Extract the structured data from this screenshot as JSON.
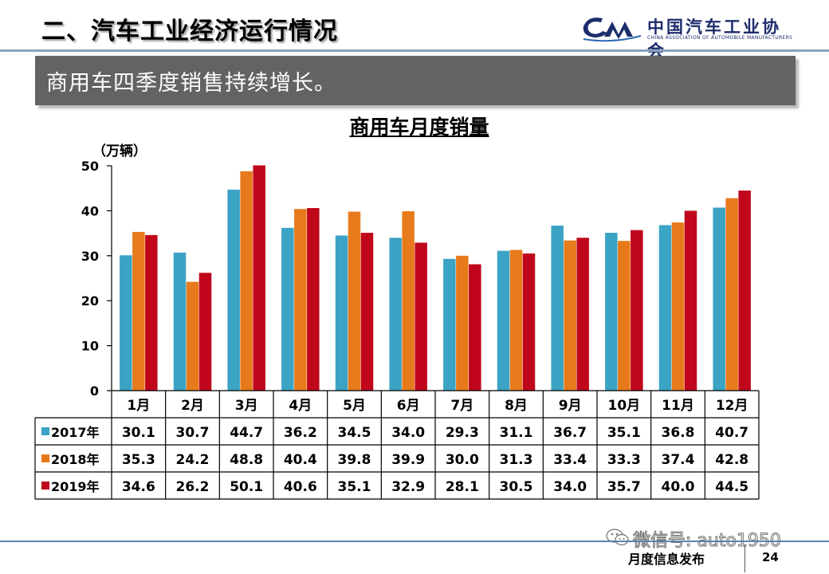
{
  "header": {
    "title": "二、汽车工业经济运行情况",
    "logo_cn": "中国汽车工业协会",
    "logo_en": "CHINA ASSOCIATION OF AUTOMOBILE MANUFACTURERS"
  },
  "banner": {
    "text": "商用车四季度销售持续增长。"
  },
  "colors": {
    "header_line": "#8aa2be",
    "banner_bg": "#636363",
    "logo": "#1d2c6b",
    "footer_line": "#5b82b1"
  },
  "chart_data": {
    "type": "bar",
    "title": "商用车月度销量",
    "unit_label": "（万辆）",
    "categories": [
      "1月",
      "2月",
      "3月",
      "4月",
      "5月",
      "6月",
      "7月",
      "8月",
      "9月",
      "10月",
      "11月",
      "12月"
    ],
    "series": [
      {
        "name": "2017年",
        "color": "#3ba3c4",
        "values": [
          "30.1",
          "30.7",
          "44.7",
          "36.2",
          "34.5",
          "34.0",
          "29.3",
          "31.1",
          "36.7",
          "35.1",
          "36.8",
          "40.7"
        ]
      },
      {
        "name": "2018年",
        "color": "#e77a1b",
        "values": [
          "35.3",
          "24.2",
          "48.8",
          "40.4",
          "39.8",
          "39.9",
          "30.0",
          "31.3",
          "33.4",
          "33.3",
          "37.4",
          "42.8"
        ]
      },
      {
        "name": "2019年",
        "color": "#c0061b",
        "values": [
          "34.6",
          "26.2",
          "50.1",
          "40.6",
          "35.1",
          "32.9",
          "28.1",
          "30.5",
          "34.0",
          "35.7",
          "40.0",
          "44.5"
        ]
      }
    ],
    "y_ticks": [
      "0",
      "10",
      "20",
      "30",
      "40",
      "50"
    ],
    "ylim": [
      0,
      50
    ],
    "grid": false,
    "legend": "data table (left)"
  },
  "watermark": {
    "text": "微信号: auto1950",
    "icon": "wechat-icon"
  },
  "footer": {
    "label": "月度信息发布",
    "page_number": "24"
  }
}
